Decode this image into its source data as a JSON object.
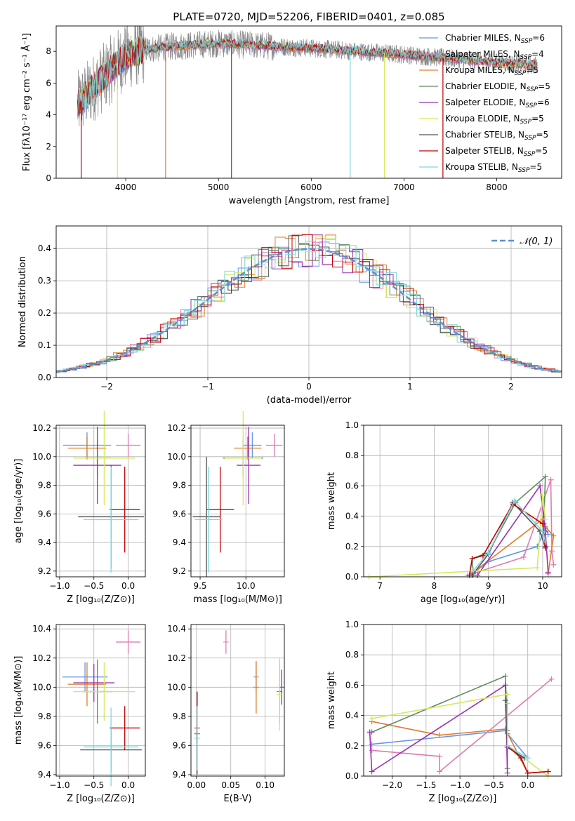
{
  "figure_title": "PLATE=0720, MJD=52206, FIBERID=0401, z=0.085",
  "legend_spectrum": [
    {
      "base": "Chabrier MILES, N",
      "sub": "SSP",
      "tail": "=6",
      "color": "#6495ED"
    },
    {
      "base": "Salpeter MILES, N",
      "sub": "SSP",
      "tail": "=4",
      "color": "#E07BB0"
    },
    {
      "base": "Kroupa MILES, N",
      "sub": "SSP",
      "tail": "=5",
      "color": "#E07B2A"
    },
    {
      "base": "Chabrier ELODIE, N",
      "sub": "SSP",
      "tail": "=5",
      "color": "#5F8A5F"
    },
    {
      "base": "Salpeter ELODIE, N",
      "sub": "SSP",
      "tail": "=6",
      "color": "#9B30B0"
    },
    {
      "base": "Kroupa ELODIE, N",
      "sub": "SSP",
      "tail": "=5",
      "color": "#D4E85A"
    },
    {
      "base": "Chabrier STELIB, N",
      "sub": "SSP",
      "tail": "=5",
      "color": "#555555"
    },
    {
      "base": "Salpeter STELIB, N",
      "sub": "SSP",
      "tail": "=5",
      "color": "#C00000"
    },
    {
      "base": "Kroupa STELIB, N",
      "sub": "SSP",
      "tail": "=5",
      "color": "#7FD8E0"
    }
  ],
  "normal_legend": "𝒩(0, 1)",
  "chart_data": [
    {
      "id": "spectrum",
      "type": "line",
      "xlabel": "wavelength [Angstrom, rest frame]",
      "ylabel": "Flux [fλ10⁻¹⁷ erg cm⁻² s⁻¹ Å⁻¹]",
      "xlim": [
        3250,
        8700
      ],
      "ylim": [
        0,
        9.6
      ],
      "xticks": [
        4000,
        5000,
        6000,
        7000,
        8000
      ],
      "yticks": [
        0,
        2,
        4,
        6,
        8
      ],
      "data_start": 3480,
      "data_end": 8440,
      "shape": [
        [
          3480,
          4.6
        ],
        [
          3600,
          5.4
        ],
        [
          3700,
          6.0
        ],
        [
          3800,
          6.6
        ],
        [
          3900,
          7.2
        ],
        [
          4000,
          7.7
        ],
        [
          4200,
          8.1
        ],
        [
          4500,
          8.3
        ],
        [
          5000,
          8.5
        ],
        [
          6000,
          8.2
        ],
        [
          7000,
          7.8
        ],
        [
          8000,
          7.3
        ],
        [
          8440,
          7.1
        ]
      ],
      "spikes": [
        {
          "x": 3520,
          "color": "#C00000"
        },
        {
          "x": 3910,
          "color": "#D4E85A"
        },
        {
          "x": 4430,
          "color": "#E07B2A"
        },
        {
          "x": 5140,
          "color": "#555555"
        },
        {
          "x": 6420,
          "color": "#7FD8E0"
        },
        {
          "x": 6790,
          "color": "#D4E85A"
        },
        {
          "x": 7420,
          "color": "#C00000"
        }
      ]
    },
    {
      "id": "residual_hist",
      "type": "line",
      "xlabel": "(data-model)/error",
      "ylabel": "Normed distribution",
      "xlim": [
        -2.5,
        2.5
      ],
      "ylim": [
        0,
        0.47
      ],
      "xticks": [
        -2,
        -1,
        0,
        1,
        2
      ],
      "xtick_labels": [
        "−2",
        "−1",
        "0",
        "1",
        "2"
      ],
      "yticks": [
        0,
        0.1,
        0.2,
        0.3,
        0.4
      ],
      "ytick_labels": [
        "0.0",
        "0.1",
        "0.2",
        "0.3",
        "0.4"
      ],
      "bin_width": 0.1,
      "normal": {
        "mean": 0,
        "sigma": 1
      }
    },
    {
      "id": "age_vs_Z",
      "type": "scatter",
      "xlabel": "Z [log₁₀(Z/Z⊙)]",
      "ylabel": "age [log₁₀(age/yr)]",
      "xlim": [
        -1.05,
        0.25
      ],
      "ylim": [
        9.16,
        10.22
      ],
      "xticks": [
        -1.0,
        -0.5,
        0.0
      ],
      "xtick_labels": [
        "−1.0",
        "−0.5",
        "0.0"
      ],
      "yticks": [
        9.2,
        9.4,
        9.6,
        9.8,
        10.0,
        10.2
      ],
      "ytick_labels": [
        "9.2",
        "9.4",
        "9.6",
        "9.8",
        "10.0",
        "10.2"
      ],
      "points": [
        {
          "x": -0.6,
          "xerr": 0.35,
          "y": 10.08,
          "yerr": 0.09,
          "color": "#6495ED"
        },
        {
          "x": 0.0,
          "xerr": 0.18,
          "y": 10.08,
          "yerr": 0.08,
          "color": "#E07BB0"
        },
        {
          "x": -0.6,
          "xerr": 0.28,
          "y": 10.06,
          "yerr": 0.08,
          "color": "#E07B2A"
        },
        {
          "x": -0.45,
          "xerr": 0.2,
          "y": 9.99,
          "yerr": 0.13,
          "color": "#5F8A5F"
        },
        {
          "x": -0.45,
          "xerr": 0.35,
          "y": 9.94,
          "yerr": 0.27,
          "color": "#9B30B0"
        },
        {
          "x": -0.35,
          "xerr": 0.45,
          "y": 9.99,
          "yerr": 0.33,
          "color": "#D4E85A"
        },
        {
          "x": -0.25,
          "xerr": 0.48,
          "y": 9.58,
          "yerr": 0.36,
          "color": "#555555"
        },
        {
          "x": -0.05,
          "xerr": 0.22,
          "y": 9.63,
          "yerr": 0.3,
          "color": "#C00000"
        },
        {
          "x": -0.25,
          "xerr": 0.4,
          "y": 9.56,
          "yerr": 0.37,
          "color": "#7FD8E0"
        }
      ]
    },
    {
      "id": "age_vs_mass",
      "type": "scatter",
      "xlabel": "mass [log₁₀(M/M⊙)]",
      "ylabel": "",
      "xlim": [
        9.4,
        10.42
      ],
      "ylim": [
        9.16,
        10.22
      ],
      "xticks": [
        9.5,
        10.0
      ],
      "xtick_labels": [
        "9.5",
        "10.0"
      ],
      "yticks": [
        9.2,
        9.4,
        9.6,
        9.8,
        10.0,
        10.2
      ],
      "ytick_labels": [
        "9.2",
        "9.4",
        "9.6",
        "9.8",
        "10.0",
        "10.2"
      ],
      "points": [
        {
          "x": 10.07,
          "xerr": 0.1,
          "y": 10.08,
          "yerr": 0.09,
          "color": "#6495ED"
        },
        {
          "x": 10.31,
          "xerr": 0.09,
          "y": 10.08,
          "yerr": 0.08,
          "color": "#E07BB0"
        },
        {
          "x": 10.02,
          "xerr": 0.15,
          "y": 10.06,
          "yerr": 0.08,
          "color": "#E07B2A"
        },
        {
          "x": 9.97,
          "xerr": 0.22,
          "y": 9.99,
          "yerr": 0.13,
          "color": "#5F8A5F"
        },
        {
          "x": 10.03,
          "xerr": 0.13,
          "y": 9.94,
          "yerr": 0.27,
          "color": "#9B30B0"
        },
        {
          "x": 9.97,
          "xerr": 0.2,
          "y": 9.99,
          "yerr": 0.33,
          "color": "#D4E85A"
        },
        {
          "x": 9.57,
          "xerr": 0.15,
          "y": 9.58,
          "yerr": 0.42,
          "color": "#555555"
        },
        {
          "x": 9.72,
          "xerr": 0.15,
          "y": 9.63,
          "yerr": 0.3,
          "color": "#C00000"
        },
        {
          "x": 9.59,
          "xerr": 0.15,
          "y": 9.56,
          "yerr": 0.37,
          "color": "#7FD8E0"
        }
      ]
    },
    {
      "id": "weight_vs_age",
      "type": "line",
      "xlabel": "age [log₁₀(age/yr)]",
      "ylabel": "mass weight",
      "xlim": [
        6.7,
        10.35
      ],
      "ylim": [
        0,
        1.0
      ],
      "xticks": [
        7,
        8,
        9,
        10
      ],
      "xtick_labels": [
        "7",
        "8",
        "9",
        "10"
      ],
      "yticks": [
        0,
        0.2,
        0.4,
        0.6,
        0.8,
        1.0
      ],
      "ytick_labels": [
        "0.0",
        "0.2",
        "0.4",
        "0.6",
        "0.8",
        "1.0"
      ],
      "series": [
        {
          "color": "#6495ED",
          "points": [
            [
              8.7,
              0.02
            ],
            [
              9.0,
              0.1
            ],
            [
              9.9,
              0.2
            ],
            [
              10.0,
              0.28
            ],
            [
              10.05,
              0.32
            ],
            [
              10.1,
              0.28
            ]
          ]
        },
        {
          "color": "#E07BB0",
          "points": [
            [
              8.62,
              0.01
            ],
            [
              9.65,
              0.13
            ],
            [
              10.15,
              0.64
            ],
            [
              10.17,
              0.17
            ],
            [
              10.2,
              0.08
            ]
          ]
        },
        {
          "color": "#E07B2A",
          "points": [
            [
              8.72,
              0.03
            ],
            [
              10.0,
              0.38
            ],
            [
              10.05,
              0.33
            ],
            [
              10.2,
              0.27
            ],
            [
              10.1,
              0.02
            ]
          ]
        },
        {
          "color": "#5F8A5F",
          "points": [
            [
              8.72,
              0.02
            ],
            [
              8.7,
              0.12
            ],
            [
              9.0,
              0.16
            ],
            [
              9.5,
              0.49
            ],
            [
              10.05,
              0.66
            ],
            [
              10.02,
              0.35
            ]
          ]
        },
        {
          "color": "#9B30B0",
          "points": [
            [
              8.8,
              0.01
            ],
            [
              9.95,
              0.6
            ],
            [
              10.05,
              0.3
            ],
            [
              10.1,
              0.03
            ]
          ]
        },
        {
          "color": "#D4E85A",
          "points": [
            [
              6.8,
              0.0
            ],
            [
              9.9,
              0.06
            ],
            [
              10.0,
              0.54
            ],
            [
              10.05,
              0.38
            ]
          ]
        },
        {
          "color": "#555555",
          "points": [
            [
              8.7,
              0.01
            ],
            [
              9.0,
              0.15
            ],
            [
              9.45,
              0.49
            ],
            [
              9.95,
              0.3
            ],
            [
              10.05,
              0.19
            ]
          ]
        },
        {
          "color": "#C00000",
          "points": [
            [
              8.65,
              0.01
            ],
            [
              8.7,
              0.12
            ],
            [
              8.9,
              0.14
            ],
            [
              9.45,
              0.48
            ],
            [
              10.0,
              0.35
            ],
            [
              10.05,
              0.2
            ]
          ]
        },
        {
          "color": "#7FD8E0",
          "points": [
            [
              8.72,
              0.04
            ],
            [
              9.0,
              0.16
            ],
            [
              9.48,
              0.5
            ],
            [
              10.0,
              0.3
            ],
            [
              10.05,
              0.23
            ]
          ]
        }
      ]
    },
    {
      "id": "mass_vs_Z",
      "type": "scatter",
      "xlabel": "Z [log₁₀(Z/Z⊙)]",
      "ylabel": "mass [log₁₀(M/M⊙)]",
      "xlim": [
        -1.05,
        0.25
      ],
      "ylim": [
        9.39,
        10.43
      ],
      "xticks": [
        -1.0,
        -0.5,
        0.0
      ],
      "xtick_labels": [
        "−1.0",
        "−0.5",
        "0.0"
      ],
      "yticks": [
        9.4,
        9.6,
        9.8,
        10.0,
        10.2,
        10.4
      ],
      "ytick_labels": [
        "9.4",
        "9.6",
        "9.8",
        "10.0",
        "10.2",
        "10.4"
      ],
      "points": [
        {
          "x": -0.63,
          "xerr": 0.33,
          "y": 10.07,
          "yerr": 0.1,
          "color": "#6495ED"
        },
        {
          "x": 0.0,
          "xerr": 0.18,
          "y": 10.31,
          "yerr": 0.08,
          "color": "#E07BB0"
        },
        {
          "x": -0.6,
          "xerr": 0.28,
          "y": 10.02,
          "yerr": 0.15,
          "color": "#E07B2A"
        },
        {
          "x": -0.45,
          "xerr": 0.22,
          "y": 9.97,
          "yerr": 0.22,
          "color": "#5F8A5F"
        },
        {
          "x": -0.5,
          "xerr": 0.3,
          "y": 10.03,
          "yerr": 0.13,
          "color": "#9B30B0"
        },
        {
          "x": -0.35,
          "xerr": 0.45,
          "y": 9.97,
          "yerr": 0.2,
          "color": "#D4E85A"
        },
        {
          "x": -0.25,
          "xerr": 0.45,
          "y": 9.57,
          "yerr": 0.15,
          "color": "#555555"
        },
        {
          "x": -0.05,
          "xerr": 0.22,
          "y": 9.72,
          "yerr": 0.15,
          "color": "#C00000"
        },
        {
          "x": -0.25,
          "xerr": 0.4,
          "y": 9.59,
          "yerr": 0.27,
          "color": "#7FD8E0"
        }
      ]
    },
    {
      "id": "mass_vs_ebv",
      "type": "scatter",
      "xlabel": "E(B-V)",
      "ylabel": "",
      "xlim": [
        -0.008,
        0.128
      ],
      "ylim": [
        9.39,
        10.43
      ],
      "xticks": [
        0.0,
        0.05,
        0.1
      ],
      "xtick_labels": [
        "0.00",
        "0.05",
        "0.10"
      ],
      "yticks": [
        9.4,
        9.6,
        9.8,
        10.0,
        10.2,
        10.4
      ],
      "ytick_labels": [
        "9.4",
        "9.6",
        "9.8",
        "10.0",
        "10.2",
        "10.4"
      ],
      "points": [
        {
          "x": 0.087,
          "y": 10.07,
          "yerr": 0.1,
          "color": "#6495ED"
        },
        {
          "x": 0.043,
          "y": 10.31,
          "yerr": 0.08,
          "color": "#E07BB0"
        },
        {
          "x": 0.087,
          "y": 10.0,
          "yerr": 0.18,
          "color": "#E07B2A"
        },
        {
          "x": 0.121,
          "y": 9.97,
          "yerr": 0.22,
          "color": "#5F8A5F"
        },
        {
          "x": 0.124,
          "y": 10.0,
          "yerr": 0.12,
          "color": "#9B30B0"
        },
        {
          "x": 0.121,
          "y": 9.95,
          "yerr": 0.25,
          "color": "#D4E85A"
        },
        {
          "x": 0.001,
          "y": 9.68,
          "yerr": 0.28,
          "color": "#555555"
        },
        {
          "x": 0.001,
          "y": 9.72,
          "yerr": 0.25,
          "color": "#C00000"
        },
        {
          "x": 0.001,
          "y": 9.65,
          "yerr": 0.22,
          "color": "#7FD8E0"
        }
      ]
    },
    {
      "id": "weight_vs_Z",
      "type": "line",
      "xlabel": "Z [log₁₀(Z/Z⊙)]",
      "ylabel": "mass weight",
      "xlim": [
        -2.42,
        0.5
      ],
      "ylim": [
        0,
        1.0
      ],
      "xticks": [
        -2.0,
        -1.5,
        -1.0,
        -0.5,
        0.0
      ],
      "xtick_labels": [
        "−2.0",
        "−1.5",
        "−1.0",
        "−0.5",
        "0.0"
      ],
      "yticks": [
        0,
        0.2,
        0.4,
        0.6,
        0.8,
        1.0
      ],
      "ytick_labels": [
        "0.0",
        "0.2",
        "0.4",
        "0.6",
        "0.8",
        "1.0"
      ],
      "series": [
        {
          "color": "#6495ED",
          "points": [
            [
              -2.3,
              0.21
            ],
            [
              -0.33,
              0.3
            ],
            [
              -0.3,
              0.28
            ],
            [
              0.0,
              0.12
            ]
          ]
        },
        {
          "color": "#E07BB0",
          "points": [
            [
              -2.3,
              0.17
            ],
            [
              -1.3,
              0.13
            ],
            [
              -1.3,
              0.03
            ],
            [
              0.35,
              0.64
            ]
          ]
        },
        {
          "color": "#E07B2A",
          "points": [
            [
              -2.3,
              0.36
            ],
            [
              -1.3,
              0.27
            ],
            [
              -0.33,
              0.31
            ],
            [
              0.0,
              0.02
            ],
            [
              0.3,
              0.03
            ]
          ]
        },
        {
          "color": "#5F8A5F",
          "points": [
            [
              -2.3,
              0.29
            ],
            [
              -0.33,
              0.66
            ],
            [
              -0.3,
              0.3
            ],
            [
              -0.3,
              0.05
            ]
          ]
        },
        {
          "color": "#9B30B0",
          "points": [
            [
              -2.33,
              0.29
            ],
            [
              -2.3,
              0.03
            ],
            [
              -0.33,
              0.6
            ],
            [
              -0.3,
              0.02
            ]
          ]
        },
        {
          "color": "#D4E85A",
          "points": [
            [
              -2.3,
              0.38
            ],
            [
              -0.3,
              0.54
            ],
            [
              -0.3,
              0.2
            ],
            [
              0.3,
              0.0
            ]
          ]
        },
        {
          "color": "#555555",
          "points": [
            [
              -0.33,
              0.5
            ],
            [
              -0.3,
              0.19
            ],
            [
              -0.05,
              0.12
            ]
          ]
        },
        {
          "color": "#C00000",
          "points": [
            [
              -0.3,
              0.2
            ],
            [
              -0.1,
              0.12
            ],
            [
              0.0,
              0.02
            ],
            [
              0.3,
              0.03
            ]
          ]
        },
        {
          "color": "#7FD8E0",
          "points": [
            [
              -0.3,
              0.48
            ],
            [
              -0.3,
              0.2
            ],
            [
              0.0,
              0.12
            ]
          ]
        }
      ]
    }
  ]
}
